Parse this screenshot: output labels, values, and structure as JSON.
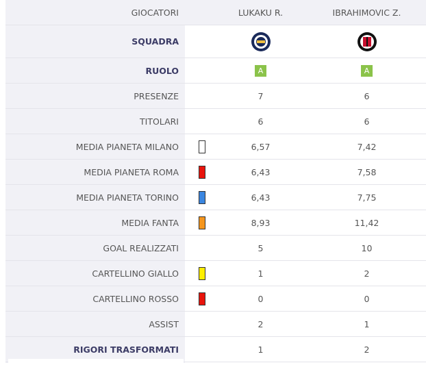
{
  "table": {
    "header": [
      "GIOCATORI",
      "LUKAKU R.",
      "IBRAHIMOVIC Z."
    ],
    "squadra": "SQUADRA",
    "ruolo": {
      "label": "RUOLO",
      "values": [
        "A",
        "A"
      ]
    },
    "rows": [
      {
        "label": "PRESENZE",
        "values": [
          "7",
          "6"
        ]
      },
      {
        "label": "TITOLARI",
        "values": [
          "6",
          "6"
        ]
      },
      {
        "label": "MEDIA PIANETA MILANO",
        "swatch": "#ffffff",
        "values": [
          "6,57",
          "7,42"
        ]
      },
      {
        "label": "MEDIA PIANETA ROMA",
        "swatch": "#e8140c",
        "values": [
          "6,43",
          "7,58"
        ]
      },
      {
        "label": "MEDIA PIANETA TORINO",
        "swatch": "#3b86e0",
        "values": [
          "6,43",
          "7,75"
        ]
      },
      {
        "label": "MEDIA FANTA",
        "swatch": "#f5961e",
        "values": [
          "8,93",
          "11,42"
        ]
      },
      {
        "label": "GOAL REALIZZATI",
        "values": [
          "5",
          "10"
        ]
      },
      {
        "label": "CARTELLINO GIALLO",
        "swatch": "#ffee00",
        "values": [
          "1",
          "2"
        ]
      },
      {
        "label": "CARTELLINO ROSSO",
        "swatch": "#e8140c",
        "values": [
          "0",
          "0"
        ]
      },
      {
        "label": "ASSIST",
        "values": [
          "2",
          "1"
        ]
      },
      {
        "label": "RIGORI TRASFORMATI",
        "bold": true,
        "values": [
          "1",
          "2"
        ]
      }
    ]
  }
}
